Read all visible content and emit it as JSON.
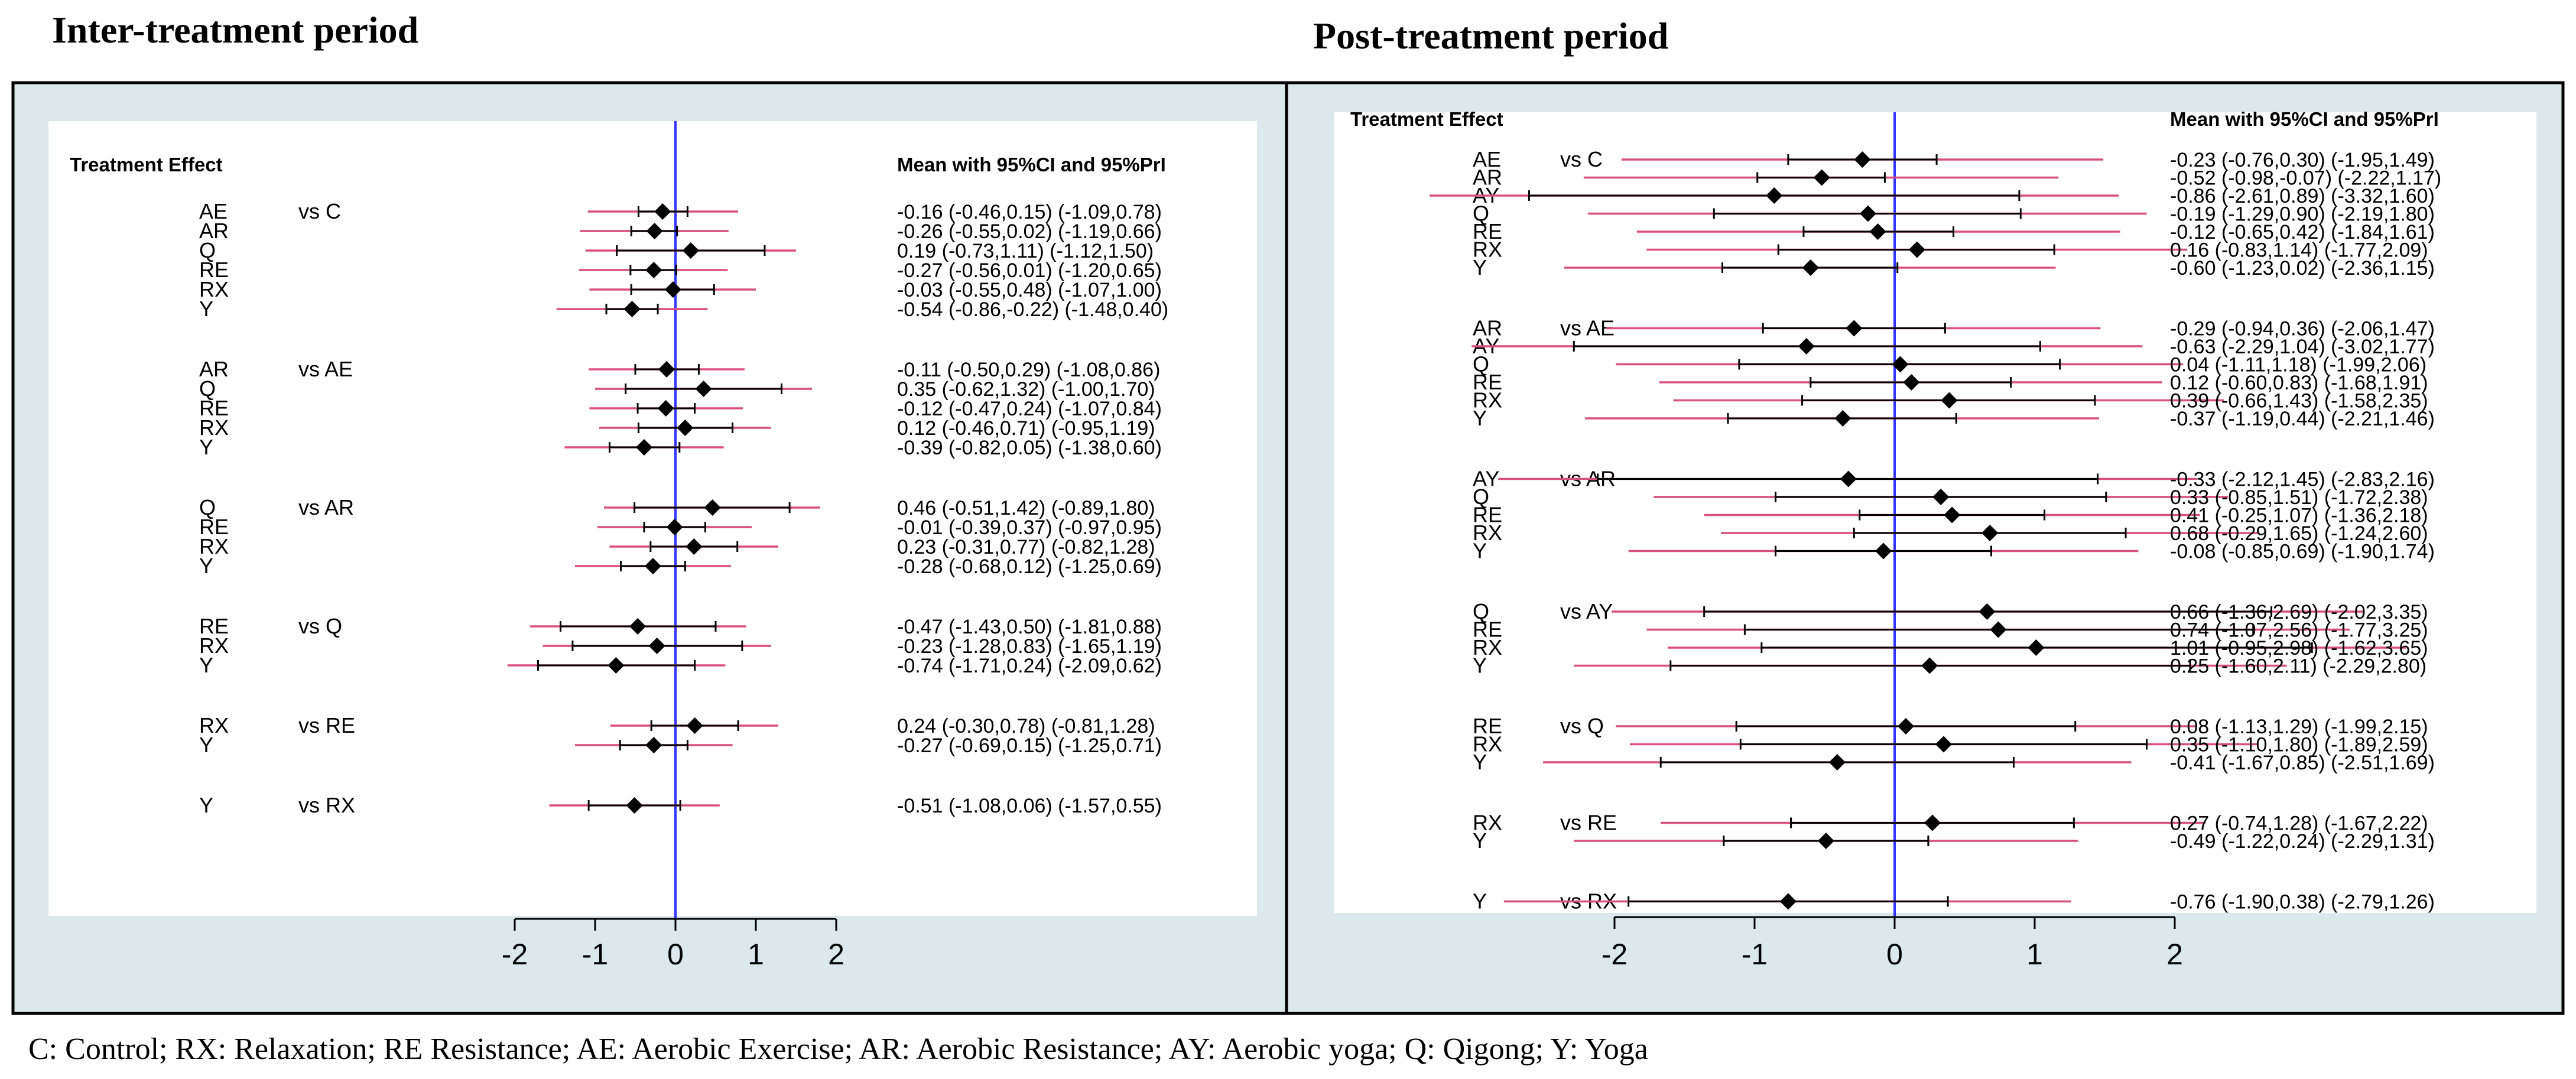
{
  "footnote": "C: Control; RX: Relaxation; RE Resistance; AE: Aerobic Exercise; AR: Aerobic Resistance; AY: Aerobic yoga; Q: Qigong; Y: Yoga",
  "colors": {
    "ci": "#000000",
    "pri": "#d94f7e",
    "zero_line": "#3333ff",
    "outer_bg": "#dbe8ec",
    "plot_bg": "#ffffff"
  },
  "chart_data": [
    {
      "type": "forest",
      "title": "Inter-treatment period",
      "header_left": "Treatment Effect",
      "header_right": "Mean with 95%CI and 95%PrI",
      "xticks": [
        -2,
        -1,
        0,
        1,
        2
      ],
      "xlim": [
        -2.6,
        2.6
      ],
      "groups": [
        {
          "comparator": "vs C",
          "rows": [
            {
              "label": "AE",
              "mean": -0.16,
              "ci": [
                -0.46,
                0.15
              ],
              "pri": [
                -1.09,
                0.78
              ],
              "text": "-0.16 (-0.46,0.15)  (-1.09,0.78)"
            },
            {
              "label": "AR",
              "mean": -0.26,
              "ci": [
                -0.55,
                0.02
              ],
              "pri": [
                -1.19,
                0.66
              ],
              "text": "-0.26 (-0.55,0.02)  (-1.19,0.66)"
            },
            {
              "label": "Q",
              "mean": 0.19,
              "ci": [
                -0.73,
                1.11
              ],
              "pri": [
                -1.12,
                1.5
              ],
              "text": "0.19 (-0.73,1.11)  (-1.12,1.50)"
            },
            {
              "label": "RE",
              "mean": -0.27,
              "ci": [
                -0.56,
                0.01
              ],
              "pri": [
                -1.2,
                0.65
              ],
              "text": "-0.27 (-0.56,0.01)  (-1.20,0.65)"
            },
            {
              "label": "RX",
              "mean": -0.03,
              "ci": [
                -0.55,
                0.48
              ],
              "pri": [
                -1.07,
                1.0
              ],
              "text": "-0.03 (-0.55,0.48)  (-1.07,1.00)"
            },
            {
              "label": "Y",
              "mean": -0.54,
              "ci": [
                -0.86,
                -0.22
              ],
              "pri": [
                -1.48,
                0.4
              ],
              "text": "-0.54 (-0.86,-0.22)  (-1.48,0.40)"
            }
          ]
        },
        {
          "comparator": "vs AE",
          "rows": [
            {
              "label": "AR",
              "mean": -0.11,
              "ci": [
                -0.5,
                0.29
              ],
              "pri": [
                -1.08,
                0.86
              ],
              "text": "-0.11 (-0.50,0.29)  (-1.08,0.86)"
            },
            {
              "label": "Q",
              "mean": 0.35,
              "ci": [
                -0.62,
                1.32
              ],
              "pri": [
                -1.0,
                1.7
              ],
              "text": "0.35 (-0.62,1.32)  (-1.00,1.70)"
            },
            {
              "label": "RE",
              "mean": -0.12,
              "ci": [
                -0.47,
                0.24
              ],
              "pri": [
                -1.07,
                0.84
              ],
              "text": "-0.12 (-0.47,0.24)  (-1.07,0.84)"
            },
            {
              "label": "RX",
              "mean": 0.12,
              "ci": [
                -0.46,
                0.71
              ],
              "pri": [
                -0.95,
                1.19
              ],
              "text": "0.12 (-0.46,0.71)  (-0.95,1.19)"
            },
            {
              "label": "Y",
              "mean": -0.39,
              "ci": [
                -0.82,
                0.05
              ],
              "pri": [
                -1.38,
                0.6
              ],
              "text": "-0.39 (-0.82,0.05)  (-1.38,0.60)"
            }
          ]
        },
        {
          "comparator": "vs AR",
          "rows": [
            {
              "label": "Q",
              "mean": 0.46,
              "ci": [
                -0.51,
                1.42
              ],
              "pri": [
                -0.89,
                1.8
              ],
              "text": "0.46 (-0.51,1.42)  (-0.89,1.80)"
            },
            {
              "label": "RE",
              "mean": -0.01,
              "ci": [
                -0.39,
                0.37
              ],
              "pri": [
                -0.97,
                0.95
              ],
              "text": "-0.01 (-0.39,0.37)  (-0.97,0.95)"
            },
            {
              "label": "RX",
              "mean": 0.23,
              "ci": [
                -0.31,
                0.77
              ],
              "pri": [
                -0.82,
                1.28
              ],
              "text": "0.23 (-0.31,0.77)  (-0.82,1.28)"
            },
            {
              "label": "Y",
              "mean": -0.28,
              "ci": [
                -0.68,
                0.12
              ],
              "pri": [
                -1.25,
                0.69
              ],
              "text": "-0.28 (-0.68,0.12)  (-1.25,0.69)"
            }
          ]
        },
        {
          "comparator": "vs Q",
          "rows": [
            {
              "label": "RE",
              "mean": -0.47,
              "ci": [
                -1.43,
                0.5
              ],
              "pri": [
                -1.81,
                0.88
              ],
              "text": "-0.47 (-1.43,0.50)  (-1.81,0.88)"
            },
            {
              "label": "RX",
              "mean": -0.23,
              "ci": [
                -1.28,
                0.83
              ],
              "pri": [
                -1.65,
                1.19
              ],
              "text": "-0.23 (-1.28,0.83)  (-1.65,1.19)"
            },
            {
              "label": "Y",
              "mean": -0.74,
              "ci": [
                -1.71,
                0.24
              ],
              "pri": [
                -2.09,
                0.62
              ],
              "text": "-0.74 (-1.71,0.24)  (-2.09,0.62)"
            }
          ]
        },
        {
          "comparator": "vs RE",
          "rows": [
            {
              "label": "RX",
              "mean": 0.24,
              "ci": [
                -0.3,
                0.78
              ],
              "pri": [
                -0.81,
                1.28
              ],
              "text": "0.24 (-0.30,0.78)  (-0.81,1.28)"
            },
            {
              "label": "Y",
              "mean": -0.27,
              "ci": [
                -0.69,
                0.15
              ],
              "pri": [
                -1.25,
                0.71
              ],
              "text": "-0.27 (-0.69,0.15)  (-1.25,0.71)"
            }
          ]
        },
        {
          "comparator": "vs RX",
          "rows": [
            {
              "label": "Y",
              "mean": -0.51,
              "ci": [
                -1.08,
                0.06
              ],
              "pri": [
                -1.57,
                0.55
              ],
              "text": "-0.51 (-1.08,0.06)  (-1.57,0.55)"
            }
          ]
        }
      ]
    },
    {
      "type": "forest",
      "title": "Post-treatment period",
      "header_left": "Treatment Effect",
      "header_right": "Mean with 95%CI and 95%PrI",
      "xticks": [
        -2,
        -1,
        0,
        1,
        2
      ],
      "xlim": [
        -3.45,
        3.6
      ],
      "groups": [
        {
          "comparator": "vs C",
          "rows": [
            {
              "label": "AE",
              "mean": -0.23,
              "ci": [
                -0.76,
                0.3
              ],
              "pri": [
                -1.95,
                1.49
              ],
              "text": "-0.23 (-0.76,0.30)  (-1.95,1.49)"
            },
            {
              "label": "AR",
              "mean": -0.52,
              "ci": [
                -0.98,
                -0.07
              ],
              "pri": [
                -2.22,
                1.17
              ],
              "text": "-0.52 (-0.98,-0.07)  (-2.22,1.17)"
            },
            {
              "label": "AY",
              "mean": -0.86,
              "ci": [
                -2.61,
                0.89
              ],
              "pri": [
                -3.32,
                1.6
              ],
              "text": "-0.86 (-2.61,0.89)  (-3.32,1.60)"
            },
            {
              "label": "Q",
              "mean": -0.19,
              "ci": [
                -1.29,
                0.9
              ],
              "pri": [
                -2.19,
                1.8
              ],
              "text": "-0.19 (-1.29,0.90)  (-2.19,1.80)"
            },
            {
              "label": "RE",
              "mean": -0.12,
              "ci": [
                -0.65,
                0.42
              ],
              "pri": [
                -1.84,
                1.61
              ],
              "text": "-0.12 (-0.65,0.42)  (-1.84,1.61)"
            },
            {
              "label": "RX",
              "mean": 0.16,
              "ci": [
                -0.83,
                1.14
              ],
              "pri": [
                -1.77,
                2.09
              ],
              "text": "0.16 (-0.83,1.14)  (-1.77,2.09)"
            },
            {
              "label": "Y",
              "mean": -0.6,
              "ci": [
                -1.23,
                0.02
              ],
              "pri": [
                -2.36,
                1.15
              ],
              "text": "-0.60 (-1.23,0.02)  (-2.36,1.15)"
            }
          ]
        },
        {
          "comparator": "vs AE",
          "rows": [
            {
              "label": "AR",
              "mean": -0.29,
              "ci": [
                -0.94,
                0.36
              ],
              "pri": [
                -2.06,
                1.47
              ],
              "text": "-0.29 (-0.94,0.36)  (-2.06,1.47)"
            },
            {
              "label": "AY",
              "mean": -0.63,
              "ci": [
                -2.29,
                1.04
              ],
              "pri": [
                -3.02,
                1.77
              ],
              "text": "-0.63 (-2.29,1.04)  (-3.02,1.77)"
            },
            {
              "label": "Q",
              "mean": 0.04,
              "ci": [
                -1.11,
                1.18
              ],
              "pri": [
                -1.99,
                2.06
              ],
              "text": "0.04 (-1.11,1.18)  (-1.99,2.06)"
            },
            {
              "label": "RE",
              "mean": 0.12,
              "ci": [
                -0.6,
                0.83
              ],
              "pri": [
                -1.68,
                1.91
              ],
              "text": "0.12 (-0.60,0.83)  (-1.68,1.91)"
            },
            {
              "label": "RX",
              "mean": 0.39,
              "ci": [
                -0.66,
                1.43
              ],
              "pri": [
                -1.58,
                2.35
              ],
              "text": "0.39 (-0.66,1.43)  (-1.58,2.35)"
            },
            {
              "label": "Y",
              "mean": -0.37,
              "ci": [
                -1.19,
                0.44
              ],
              "pri": [
                -2.21,
                1.46
              ],
              "text": "-0.37 (-1.19,0.44)  (-2.21,1.46)"
            }
          ]
        },
        {
          "comparator": "vs AR",
          "rows": [
            {
              "label": "AY",
              "mean": -0.33,
              "ci": [
                -2.12,
                1.45
              ],
              "pri": [
                -2.83,
                2.16
              ],
              "text": "-0.33 (-2.12,1.45)  (-2.83,2.16)"
            },
            {
              "label": "Q",
              "mean": 0.33,
              "ci": [
                -0.85,
                1.51
              ],
              "pri": [
                -1.72,
                2.38
              ],
              "text": "0.33 (-0.85,1.51)  (-1.72,2.38)"
            },
            {
              "label": "RE",
              "mean": 0.41,
              "ci": [
                -0.25,
                1.07
              ],
              "pri": [
                -1.36,
                2.18
              ],
              "text": "0.41 (-0.25,1.07)  (-1.36,2.18)"
            },
            {
              "label": "RX",
              "mean": 0.68,
              "ci": [
                -0.29,
                1.65
              ],
              "pri": [
                -1.24,
                2.6
              ],
              "text": "0.68 (-0.29,1.65)  (-1.24,2.60)"
            },
            {
              "label": "Y",
              "mean": -0.08,
              "ci": [
                -0.85,
                0.69
              ],
              "pri": [
                -1.9,
                1.74
              ],
              "text": "-0.08 (-0.85,0.69)  (-1.90,1.74)"
            }
          ]
        },
        {
          "comparator": "vs AY",
          "rows": [
            {
              "label": "Q",
              "mean": 0.66,
              "ci": [
                -1.36,
                2.69
              ],
              "pri": [
                -2.02,
                3.35
              ],
              "text": "0.66 (-1.36,2.69)  (-2.02,3.35)"
            },
            {
              "label": "RE",
              "mean": 0.74,
              "ci": [
                -1.07,
                2.56
              ],
              "pri": [
                -1.77,
                3.25
              ],
              "text": "0.74 (-1.07,2.56)  (-1.77,3.25)"
            },
            {
              "label": "RX",
              "mean": 1.01,
              "ci": [
                -0.95,
                2.98
              ],
              "pri": [
                -1.62,
                3.65
              ],
              "text": "1.01 (-0.95,2.98)  (-1.62,3.65)"
            },
            {
              "label": "Y",
              "mean": 0.25,
              "ci": [
                -1.6,
                2.11
              ],
              "pri": [
                -2.29,
                2.8
              ],
              "text": "0.25 (-1.60,2.11)  (-2.29,2.80)"
            }
          ]
        },
        {
          "comparator": "vs Q",
          "rows": [
            {
              "label": "RE",
              "mean": 0.08,
              "ci": [
                -1.13,
                1.29
              ],
              "pri": [
                -1.99,
                2.15
              ],
              "text": "0.08 (-1.13,1.29)  (-1.99,2.15)"
            },
            {
              "label": "RX",
              "mean": 0.35,
              "ci": [
                -1.1,
                1.8
              ],
              "pri": [
                -1.89,
                2.59
              ],
              "text": "0.35 (-1.10,1.80)  (-1.89,2.59)"
            },
            {
              "label": "Y",
              "mean": -0.41,
              "ci": [
                -1.67,
                0.85
              ],
              "pri": [
                -2.51,
                1.69
              ],
              "text": "-0.41 (-1.67,0.85)  (-2.51,1.69)"
            }
          ]
        },
        {
          "comparator": "vs RE",
          "rows": [
            {
              "label": "RX",
              "mean": 0.27,
              "ci": [
                -0.74,
                1.28
              ],
              "pri": [
                -1.67,
                2.22
              ],
              "text": "0.27 (-0.74,1.28)  (-1.67,2.22)"
            },
            {
              "label": "Y",
              "mean": -0.49,
              "ci": [
                -1.22,
                0.24
              ],
              "pri": [
                -2.29,
                1.31
              ],
              "text": "-0.49 (-1.22,0.24)  (-2.29,1.31)"
            }
          ]
        },
        {
          "comparator": "vs RX",
          "rows": [
            {
              "label": "Y",
              "mean": -0.76,
              "ci": [
                -1.9,
                0.38
              ],
              "pri": [
                -2.79,
                1.26
              ],
              "text": "-0.76 (-1.90,0.38)  (-2.79,1.26)"
            }
          ]
        }
      ]
    }
  ]
}
